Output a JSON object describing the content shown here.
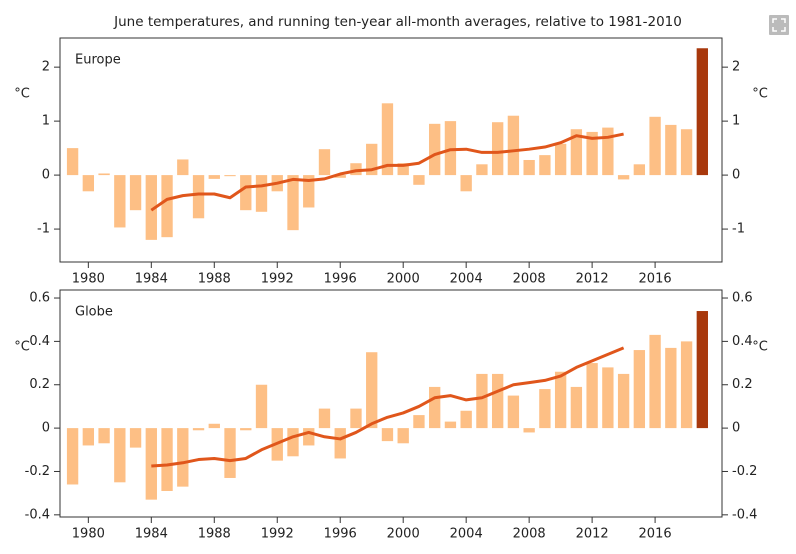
{
  "title": "June temperatures, and running ten-year all-month averages, relative to 1981-2010",
  "chart_data": [
    {
      "type": "bar",
      "panel_label": "Europe",
      "y_label": "°C",
      "x": [
        1979,
        1980,
        1981,
        1982,
        1983,
        1984,
        1985,
        1986,
        1987,
        1988,
        1989,
        1990,
        1991,
        1992,
        1993,
        1994,
        1995,
        1996,
        1997,
        1998,
        1999,
        2000,
        2001,
        2002,
        2003,
        2004,
        2005,
        2006,
        2007,
        2008,
        2009,
        2010,
        2011,
        2012,
        2013,
        2014,
        2015,
        2016,
        2017,
        2018,
        2019
      ],
      "values": [
        0.5,
        -0.3,
        0.03,
        -0.97,
        -0.65,
        -1.2,
        -1.15,
        0.29,
        -0.8,
        -0.07,
        -0.02,
        -0.65,
        -0.68,
        -0.3,
        -1.02,
        -0.6,
        0.48,
        -0.05,
        0.22,
        0.58,
        1.33,
        0.22,
        -0.18,
        0.95,
        1.0,
        -0.3,
        0.2,
        0.98,
        1.1,
        0.28,
        0.37,
        0.58,
        0.85,
        0.8,
        0.88,
        -0.08,
        0.2,
        1.08,
        0.93,
        0.85,
        2.35
      ],
      "line_values": [
        null,
        null,
        null,
        null,
        null,
        -0.65,
        -0.45,
        -0.38,
        -0.35,
        -0.35,
        -0.42,
        -0.22,
        -0.2,
        -0.15,
        -0.08,
        -0.1,
        -0.07,
        0.02,
        0.08,
        0.1,
        0.18,
        0.18,
        0.22,
        0.38,
        0.47,
        0.48,
        0.42,
        0.42,
        0.45,
        0.48,
        0.52,
        0.6,
        0.73,
        0.68,
        0.7,
        0.76,
        null,
        null,
        null,
        null,
        null
      ],
      "color": "#fdbf85",
      "last_color": "#a8380c",
      "line_color": "#e0561b",
      "xlim": [
        1978.2,
        2020.25
      ],
      "xticks": [
        1980,
        1984,
        1988,
        1992,
        1996,
        2000,
        2004,
        2008,
        2012,
        2016
      ],
      "ylim": [
        -1.61,
        2.54
      ],
      "yticks": [
        -1,
        0,
        1,
        2
      ]
    },
    {
      "type": "bar",
      "panel_label": "Globe",
      "y_label": "°C",
      "x": [
        1979,
        1980,
        1981,
        1982,
        1983,
        1984,
        1985,
        1986,
        1987,
        1988,
        1989,
        1990,
        1991,
        1992,
        1993,
        1994,
        1995,
        1996,
        1997,
        1998,
        1999,
        2000,
        2001,
        2002,
        2003,
        2004,
        2005,
        2006,
        2007,
        2008,
        2009,
        2010,
        2011,
        2012,
        2013,
        2014,
        2015,
        2016,
        2017,
        2018,
        2019
      ],
      "values": [
        -0.26,
        -0.08,
        -0.07,
        -0.25,
        -0.09,
        -0.33,
        -0.29,
        -0.27,
        -0.01,
        0.02,
        -0.23,
        -0.01,
        0.2,
        -0.15,
        -0.13,
        -0.08,
        0.09,
        -0.14,
        0.09,
        0.35,
        -0.06,
        -0.07,
        0.06,
        0.19,
        0.03,
        0.08,
        0.25,
        0.25,
        0.15,
        -0.02,
        0.18,
        0.26,
        0.19,
        0.3,
        0.28,
        0.25,
        0.36,
        0.43,
        0.37,
        0.4,
        0.54
      ],
      "line_values": [
        null,
        null,
        null,
        null,
        null,
        -0.175,
        -0.17,
        -0.16,
        -0.145,
        -0.14,
        -0.15,
        -0.14,
        -0.1,
        -0.07,
        -0.04,
        -0.02,
        -0.04,
        -0.05,
        -0.02,
        0.02,
        0.05,
        0.07,
        0.1,
        0.14,
        0.15,
        0.13,
        0.14,
        0.17,
        0.2,
        0.21,
        0.22,
        0.24,
        0.28,
        0.31,
        0.34,
        0.37,
        null,
        null,
        null,
        null,
        null
      ],
      "color": "#fdbf85",
      "last_color": "#a8380c",
      "line_color": "#e0561b",
      "xlim": [
        1978.2,
        2020.25
      ],
      "xticks": [
        1980,
        1984,
        1988,
        1992,
        1996,
        2000,
        2004,
        2008,
        2012,
        2016
      ],
      "ylim": [
        -0.41,
        0.637
      ],
      "yticks": [
        -0.4,
        -0.2,
        0,
        0.2,
        0.4,
        0.6
      ]
    }
  ]
}
